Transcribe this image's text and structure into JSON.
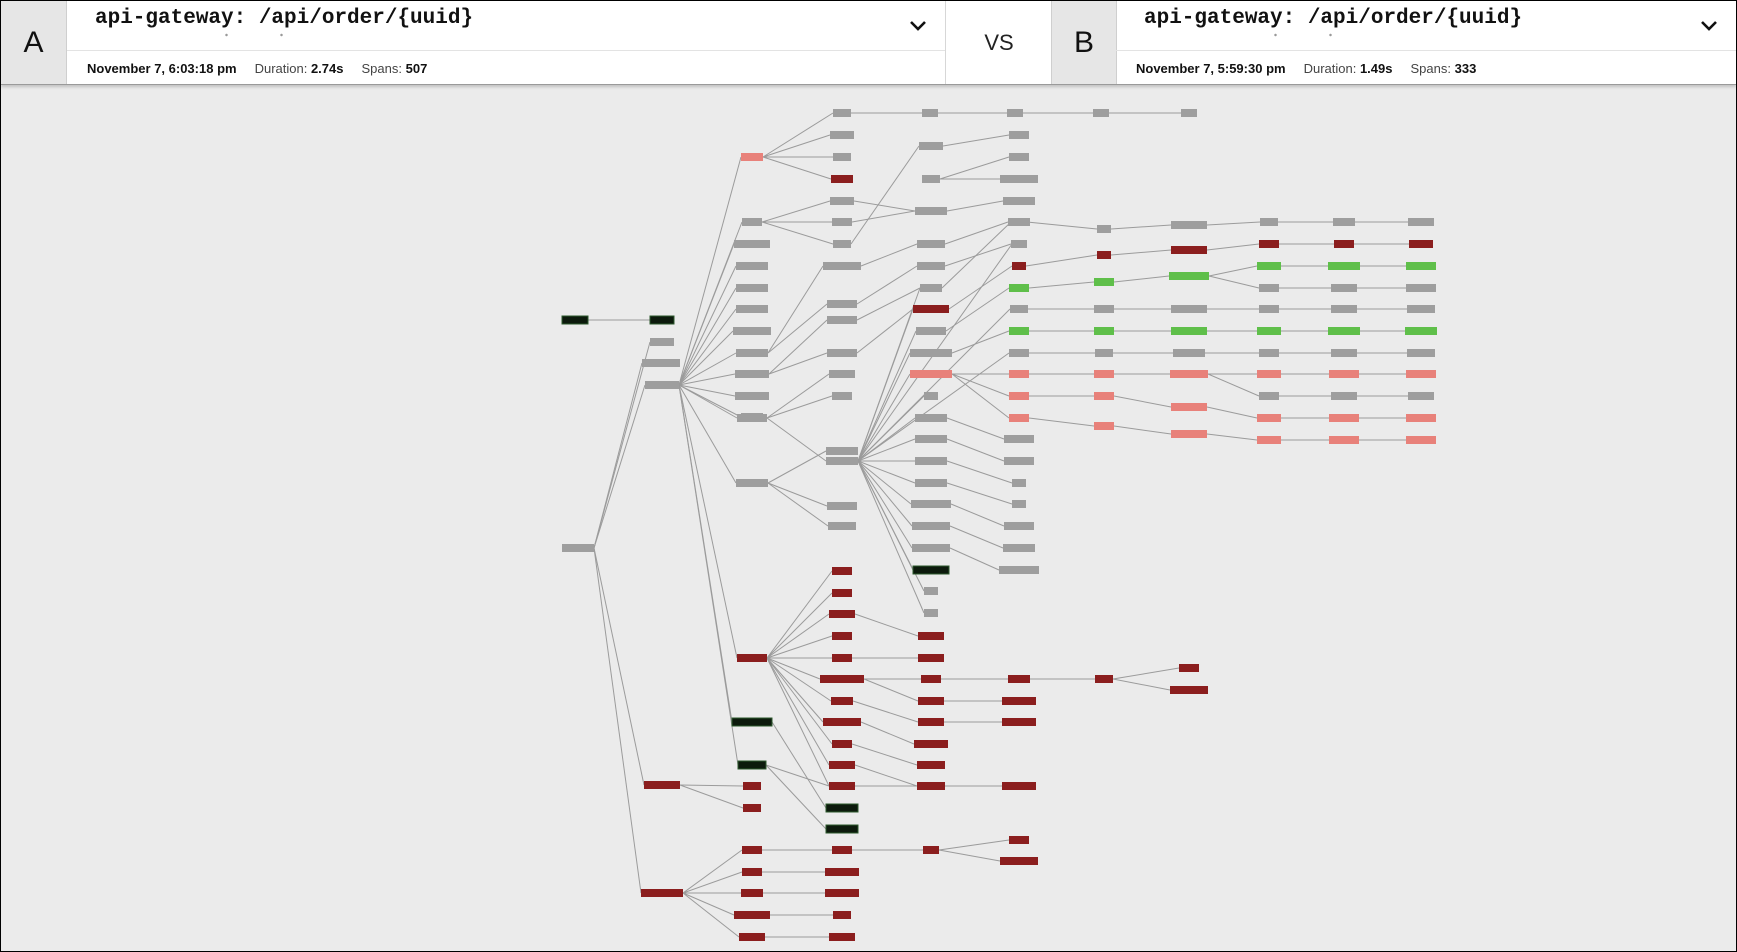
{
  "trace_a": {
    "label": "A",
    "title": "api-gateway: /api/order/{uuid}",
    "date": "November 7, 6:03:18 pm",
    "duration_label": "Duration:",
    "duration": "2.74s",
    "spans_label": "Spans:",
    "spans": "507"
  },
  "vs_label": "VS",
  "trace_b": {
    "label": "B",
    "title": "api-gateway: /api/order/{uuid}",
    "date": "November 7, 5:59:30 pm",
    "duration_label": "Duration:",
    "duration": "1.49s",
    "spans_label": "Spans:",
    "spans": "333"
  },
  "icons": {
    "dropdown": "chevron-down-icon"
  },
  "colors": {
    "same": "#9e9e9e",
    "only_in_a": "#8b1e1e",
    "increased": "#e8817a",
    "decreased": "#5fbf4a",
    "black": "#0c1a0c",
    "edge": "#9b9b9b"
  }
}
